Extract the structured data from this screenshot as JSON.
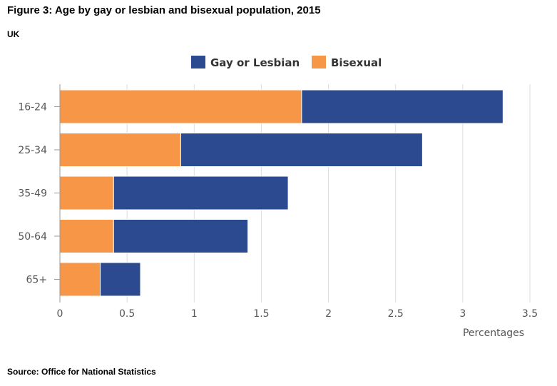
{
  "title": "Figure 3: Age by gay or lesbian and bisexual population, 2015",
  "subtitle": "UK",
  "source": "Source: Office for National Statistics",
  "chart_data": {
    "type": "bar",
    "orientation": "horizontal",
    "stacked": true,
    "categories": [
      "16-24",
      "25-34",
      "35-49",
      "50-64",
      "65+"
    ],
    "series": [
      {
        "name": "Bisexual",
        "color": "#f79646",
        "values": [
          1.8,
          0.9,
          0.4,
          0.4,
          0.3
        ]
      },
      {
        "name": "Gay or Lesbian",
        "color": "#2b4a8f",
        "values": [
          1.5,
          1.8,
          1.3,
          1.0,
          0.3
        ]
      }
    ],
    "legend_order": [
      "Gay or Lesbian",
      "Bisexual"
    ],
    "legend_position": "top",
    "xlabel": "Percentages",
    "ylabel": "",
    "xlim": [
      0,
      3.5
    ],
    "xticks": [
      "0",
      "0.5",
      "1",
      "1.5",
      "2",
      "2.5",
      "3",
      "3.5"
    ],
    "grid": true
  }
}
